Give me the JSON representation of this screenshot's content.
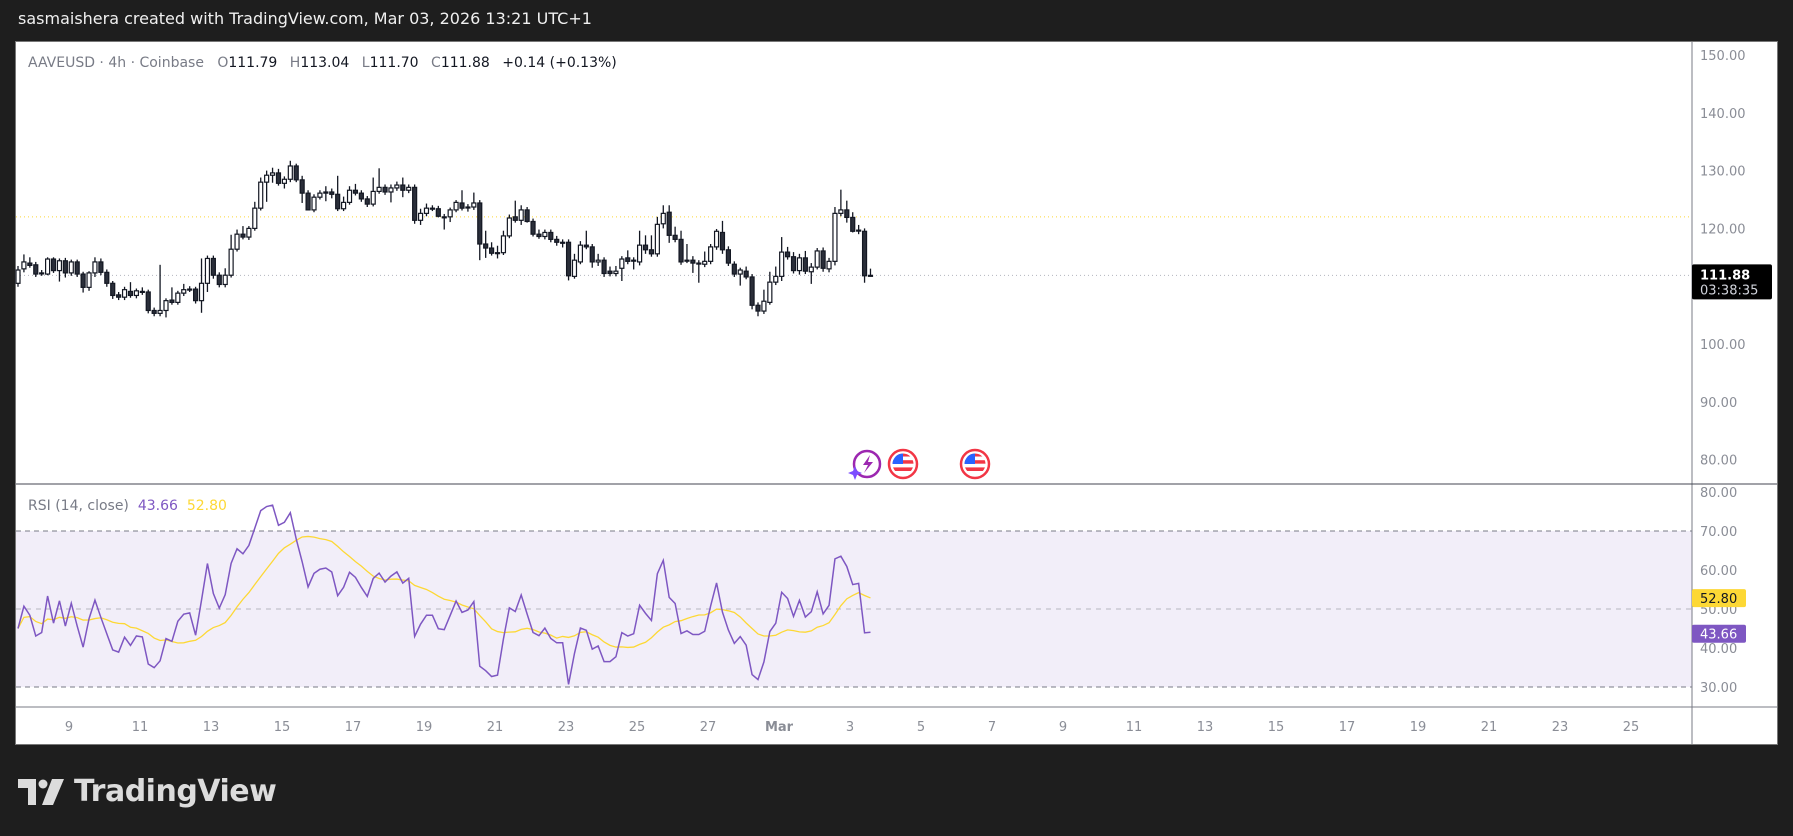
{
  "header": {
    "attribution": "sasmaishera created with TradingView.com, Mar 03, 2026 13:21 UTC+1"
  },
  "legend": {
    "symbol": "AAVEUSD · 4h · Coinbase",
    "o_label": "O",
    "o": "111.79",
    "h_label": "H",
    "h": "113.04",
    "l_label": "L",
    "l": "111.70",
    "c_label": "C",
    "c": "111.88",
    "change": "+0.14 (+0.13%)"
  },
  "price_axis": {
    "ticks": [
      "150.00",
      "140.00",
      "130.00",
      "120.00",
      "100.00",
      "90.00",
      "80.00"
    ],
    "last_price": "111.88",
    "countdown": "03:38:35"
  },
  "rsi": {
    "title": "RSI (14, close)",
    "value": "43.66",
    "ma_value": "52.80",
    "ticks": [
      "80.00",
      "70.00",
      "60.00",
      "50.00",
      "40.00",
      "30.00"
    ],
    "colors": {
      "rsi": "#7e57c2",
      "ma": "#fdd835",
      "band": "#7e57c2"
    }
  },
  "time_axis": {
    "ticks": [
      "9",
      "11",
      "13",
      "15",
      "17",
      "19",
      "21",
      "23",
      "25",
      "27",
      "Mar",
      "3",
      "5",
      "7",
      "9",
      "11",
      "13",
      "15",
      "17",
      "19",
      "21",
      "23",
      "25"
    ]
  },
  "events": [
    {
      "icon": "earnings-lightning-icon",
      "color": "#9c27b0"
    },
    {
      "icon": "us-flag-icon",
      "color": "#f23645"
    },
    {
      "icon": "us-flag-icon",
      "color": "#f23645"
    }
  ],
  "logo": {
    "text": "TradingView"
  },
  "chart_data": {
    "type": "candlestick",
    "symbol": "AAVEUSD",
    "interval": "4h",
    "first_candle": "2026-02-07 12:00",
    "price_range": [
      78,
      152
    ],
    "rsi_range": [
      25,
      82
    ],
    "rsi_levels": [
      70,
      50,
      30
    ],
    "horizontal_lines": [
      {
        "price": 122.0,
        "color": "#fdd835",
        "style": "dotted"
      },
      {
        "price": 111.88,
        "color": "#b2b5be",
        "style": "dotted"
      }
    ],
    "ohlc": [
      [
        110.5,
        113.5,
        109.9,
        112.8
      ],
      [
        113.0,
        115.5,
        112.4,
        114.2
      ],
      [
        114.0,
        115.0,
        113.2,
        113.6
      ],
      [
        113.7,
        114.2,
        111.6,
        112.1
      ],
      [
        112.3,
        112.8,
        111.8,
        112.3
      ],
      [
        112.1,
        115.0,
        111.9,
        114.7
      ],
      [
        114.7,
        115.0,
        112.3,
        112.7
      ],
      [
        112.7,
        114.8,
        110.8,
        114.4
      ],
      [
        114.4,
        114.9,
        111.5,
        112.3
      ],
      [
        112.3,
        114.6,
        111.8,
        114.2
      ],
      [
        114.2,
        114.6,
        111.6,
        112.1
      ],
      [
        112.1,
        112.5,
        108.9,
        109.8
      ],
      [
        109.8,
        112.6,
        109.2,
        112.3
      ],
      [
        112.3,
        115.0,
        111.6,
        114.2
      ],
      [
        114.2,
        114.8,
        111.9,
        112.4
      ],
      [
        112.4,
        112.9,
        109.9,
        110.5
      ],
      [
        110.5,
        110.9,
        107.8,
        108.4
      ],
      [
        108.5,
        109.0,
        107.6,
        108.1
      ],
      [
        108.1,
        109.9,
        107.6,
        109.4
      ],
      [
        109.1,
        110.7,
        108.0,
        108.4
      ],
      [
        108.4,
        109.6,
        107.9,
        109.2
      ],
      [
        109.1,
        109.8,
        108.5,
        109.1
      ],
      [
        109.0,
        109.4,
        105.3,
        105.8
      ],
      [
        105.8,
        106.3,
        104.8,
        105.3
      ],
      [
        105.3,
        113.7,
        104.8,
        105.8
      ],
      [
        105.8,
        107.9,
        104.6,
        107.5
      ],
      [
        107.6,
        109.8,
        106.8,
        107.2
      ],
      [
        107.2,
        109.2,
        106.8,
        108.8
      ],
      [
        108.8,
        110.4,
        108.3,
        109.4
      ],
      [
        109.5,
        110.0,
        109.0,
        109.5
      ],
      [
        109.5,
        109.9,
        107.0,
        107.5
      ],
      [
        107.5,
        114.8,
        105.4,
        110.5
      ],
      [
        110.5,
        115.3,
        109.0,
        114.8
      ],
      [
        114.8,
        115.3,
        111.3,
        111.9
      ],
      [
        111.9,
        112.4,
        109.8,
        110.3
      ],
      [
        110.3,
        113.1,
        109.8,
        111.9
      ],
      [
        111.9,
        118.9,
        111.5,
        116.4
      ],
      [
        116.4,
        119.8,
        116.0,
        119.0
      ],
      [
        119.0,
        120.4,
        118.1,
        118.5
      ],
      [
        118.5,
        120.4,
        118.0,
        120.0
      ],
      [
        120.0,
        124.6,
        119.6,
        123.5
      ],
      [
        123.5,
        128.8,
        123.1,
        128.0
      ],
      [
        128.0,
        130.0,
        124.6,
        129.2
      ],
      [
        129.2,
        130.5,
        127.9,
        129.6
      ],
      [
        129.6,
        130.3,
        127.4,
        127.8
      ],
      [
        127.8,
        129.0,
        126.9,
        128.5
      ],
      [
        128.5,
        131.7,
        128.0,
        130.8
      ],
      [
        130.8,
        131.2,
        128.0,
        128.4
      ],
      [
        128.4,
        129.1,
        124.4,
        126.1
      ],
      [
        126.1,
        126.6,
        123.2,
        123.2
      ],
      [
        123.2,
        125.9,
        122.8,
        125.4
      ],
      [
        125.4,
        126.6,
        125.0,
        126.1
      ],
      [
        126.1,
        127.3,
        124.7,
        126.3
      ],
      [
        126.3,
        126.9,
        125.2,
        125.9
      ],
      [
        125.9,
        129.1,
        123.0,
        123.4
      ],
      [
        123.4,
        125.5,
        123.0,
        124.5
      ],
      [
        124.5,
        127.3,
        124.1,
        126.6
      ],
      [
        126.6,
        127.7,
        125.7,
        126.1
      ],
      [
        126.1,
        126.6,
        124.6,
        125.1
      ],
      [
        125.1,
        125.6,
        123.7,
        124.2
      ],
      [
        124.2,
        128.8,
        123.8,
        126.4
      ],
      [
        126.4,
        130.4,
        126.0,
        127.1
      ],
      [
        127.1,
        127.6,
        125.8,
        126.3
      ],
      [
        126.3,
        127.6,
        124.5,
        127.0
      ],
      [
        127.0,
        128.1,
        126.5,
        127.5
      ],
      [
        127.5,
        128.8,
        125.4,
        126.6
      ],
      [
        126.6,
        127.6,
        126.1,
        127.1
      ],
      [
        127.1,
        127.6,
        120.8,
        121.4
      ],
      [
        121.4,
        123.4,
        120.6,
        122.6
      ],
      [
        122.6,
        124.3,
        122.1,
        123.5
      ],
      [
        123.5,
        124.0,
        123.0,
        123.5
      ],
      [
        123.4,
        123.9,
        121.9,
        122.1
      ],
      [
        122.0,
        122.5,
        119.8,
        122.0
      ],
      [
        122.0,
        123.6,
        121.1,
        123.2
      ],
      [
        123.2,
        124.9,
        122.8,
        124.5
      ],
      [
        124.4,
        126.6,
        123.1,
        123.5
      ],
      [
        123.7,
        124.2,
        122.9,
        123.7
      ],
      [
        123.7,
        126.2,
        123.2,
        124.4
      ],
      [
        124.4,
        124.9,
        114.5,
        117.3
      ],
      [
        117.3,
        119.6,
        114.9,
        116.6
      ],
      [
        116.6,
        117.6,
        115.3,
        115.7
      ],
      [
        115.8,
        117.0,
        114.8,
        115.8
      ],
      [
        115.8,
        119.6,
        115.4,
        118.7
      ],
      [
        118.7,
        122.4,
        118.3,
        121.8
      ],
      [
        122.0,
        124.8,
        121.0,
        121.4
      ],
      [
        121.4,
        124.0,
        120.6,
        123.2
      ],
      [
        123.2,
        123.7,
        121.0,
        121.2
      ],
      [
        121.2,
        121.7,
        118.6,
        119.0
      ],
      [
        119.0,
        119.8,
        118.2,
        118.6
      ],
      [
        118.6,
        119.8,
        118.1,
        119.3
      ],
      [
        119.3,
        119.8,
        117.6,
        118.1
      ],
      [
        118.1,
        118.7,
        117.0,
        117.6
      ],
      [
        117.6,
        118.1,
        116.7,
        117.6
      ],
      [
        117.6,
        118.1,
        111.0,
        111.8
      ],
      [
        111.7,
        115.6,
        111.3,
        114.5
      ],
      [
        114.2,
        117.8,
        113.8,
        117.1
      ],
      [
        117.1,
        119.6,
        116.4,
        116.8
      ],
      [
        116.8,
        117.3,
        113.2,
        114.2
      ],
      [
        114.2,
        115.6,
        113.5,
        114.5
      ],
      [
        114.5,
        115.0,
        111.6,
        112.2
      ],
      [
        112.6,
        113.4,
        111.7,
        112.2
      ],
      [
        112.2,
        113.5,
        111.7,
        112.6
      ],
      [
        113.1,
        115.2,
        110.9,
        114.7
      ],
      [
        114.9,
        116.2,
        113.8,
        114.3
      ],
      [
        114.5,
        115.0,
        112.9,
        114.5
      ],
      [
        114.2,
        119.6,
        113.6,
        117.1
      ],
      [
        117.1,
        118.8,
        115.6,
        116.3
      ],
      [
        116.3,
        118.8,
        115.1,
        115.6
      ],
      [
        115.6,
        122.0,
        115.1,
        120.7
      ],
      [
        120.8,
        124.0,
        120.0,
        122.6
      ],
      [
        122.8,
        124.0,
        117.5,
        118.8
      ],
      [
        118.8,
        120.3,
        117.6,
        118.1
      ],
      [
        118.1,
        119.6,
        113.7,
        114.2
      ],
      [
        114.5,
        117.3,
        114.0,
        114.5
      ],
      [
        114.5,
        115.2,
        112.3,
        114.0
      ],
      [
        114.0,
        114.5,
        110.6,
        114.0
      ],
      [
        113.8,
        116.0,
        113.3,
        114.3
      ],
      [
        114.3,
        117.3,
        113.8,
        116.8
      ],
      [
        116.8,
        119.9,
        116.3,
        119.5
      ],
      [
        119.3,
        121.3,
        115.6,
        116.3
      ],
      [
        116.3,
        116.9,
        113.5,
        114.0
      ],
      [
        113.8,
        114.3,
        111.6,
        112.1
      ],
      [
        112.1,
        113.2,
        110.1,
        112.8
      ],
      [
        112.6,
        113.4,
        111.2,
        111.6
      ],
      [
        111.6,
        112.1,
        106.0,
        106.7
      ],
      [
        106.7,
        107.2,
        104.8,
        105.7
      ],
      [
        105.7,
        109.4,
        105.2,
        107.4
      ],
      [
        107.2,
        112.5,
        106.8,
        110.7
      ],
      [
        110.7,
        113.4,
        110.2,
        111.7
      ],
      [
        111.7,
        118.5,
        110.9,
        115.9
      ],
      [
        115.9,
        116.8,
        114.6,
        115.1
      ],
      [
        115.1,
        115.9,
        112.2,
        112.7
      ],
      [
        112.7,
        115.6,
        112.0,
        114.9
      ],
      [
        114.9,
        116.1,
        112.1,
        112.6
      ],
      [
        112.5,
        114.0,
        110.4,
        113.3
      ],
      [
        113.3,
        116.6,
        112.9,
        116.1
      ],
      [
        116.1,
        116.7,
        112.5,
        113.1
      ],
      [
        113.0,
        114.9,
        112.4,
        114.3
      ],
      [
        114.3,
        123.7,
        113.6,
        122.6
      ],
      [
        122.6,
        126.7,
        122.1,
        123.2
      ],
      [
        123.2,
        124.8,
        121.0,
        121.9
      ],
      [
        121.9,
        122.8,
        119.3,
        119.5
      ],
      [
        119.7,
        120.6,
        119.0,
        119.7
      ],
      [
        119.5,
        120.0,
        110.6,
        111.8
      ],
      [
        111.79,
        113.04,
        111.7,
        111.88
      ]
    ]
  }
}
